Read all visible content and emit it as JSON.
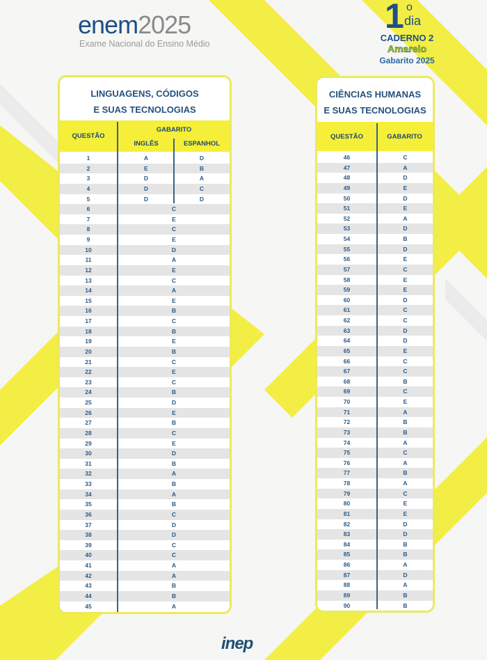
{
  "header": {
    "logo_enem": "enem",
    "logo_year": "2025",
    "logo_subtitle": "Exame Nacional do Ensino Médio",
    "day_number": "1",
    "day_ordinal": "o",
    "day_label": "dia",
    "caderno": "CADERNO 2",
    "cor": "Amarelo",
    "gabarito": "Gabarito 2025"
  },
  "colors": {
    "accent_yellow": "#f5ef3a",
    "text_blue": "#24527e",
    "row_gray": "#e5e5e6"
  },
  "left": {
    "title_line1": "LINGUAGENS, CÓDIGOS",
    "title_line2": "E SUAS TECNOLOGIAS",
    "col_questao": "QUESTÃO",
    "col_gabarito": "GABARITO",
    "col_ingles": "INGLÊS",
    "col_espanhol": "ESPANHOL",
    "rows": [
      {
        "q": "1",
        "ingles": "A",
        "espanhol": "D"
      },
      {
        "q": "2",
        "ingles": "E",
        "espanhol": "B"
      },
      {
        "q": "3",
        "ingles": "D",
        "espanhol": "A"
      },
      {
        "q": "4",
        "ingles": "D",
        "espanhol": "C"
      },
      {
        "q": "5",
        "ingles": "D",
        "espanhol": "D"
      },
      {
        "q": "6",
        "a": "C"
      },
      {
        "q": "7",
        "a": "E"
      },
      {
        "q": "8",
        "a": "C"
      },
      {
        "q": "9",
        "a": "E"
      },
      {
        "q": "10",
        "a": "D"
      },
      {
        "q": "11",
        "a": "A"
      },
      {
        "q": "12",
        "a": "E"
      },
      {
        "q": "13",
        "a": "C"
      },
      {
        "q": "14",
        "a": "A"
      },
      {
        "q": "15",
        "a": "E"
      },
      {
        "q": "16",
        "a": "B"
      },
      {
        "q": "17",
        "a": "C"
      },
      {
        "q": "18",
        "a": "B"
      },
      {
        "q": "19",
        "a": "E"
      },
      {
        "q": "20",
        "a": "B"
      },
      {
        "q": "21",
        "a": "C"
      },
      {
        "q": "22",
        "a": "E"
      },
      {
        "q": "23",
        "a": "C"
      },
      {
        "q": "24",
        "a": "B"
      },
      {
        "q": "25",
        "a": "D"
      },
      {
        "q": "26",
        "a": "E"
      },
      {
        "q": "27",
        "a": "B"
      },
      {
        "q": "28",
        "a": "C"
      },
      {
        "q": "29",
        "a": "E"
      },
      {
        "q": "30",
        "a": "D"
      },
      {
        "q": "31",
        "a": "B"
      },
      {
        "q": "32",
        "a": "A"
      },
      {
        "q": "33",
        "a": "B"
      },
      {
        "q": "34",
        "a": "A"
      },
      {
        "q": "35",
        "a": "B"
      },
      {
        "q": "36",
        "a": "C"
      },
      {
        "q": "37",
        "a": "D"
      },
      {
        "q": "38",
        "a": "D"
      },
      {
        "q": "39",
        "a": "C"
      },
      {
        "q": "40",
        "a": "C"
      },
      {
        "q": "41",
        "a": "A"
      },
      {
        "q": "42",
        "a": "A"
      },
      {
        "q": "43",
        "a": "B"
      },
      {
        "q": "44",
        "a": "B"
      },
      {
        "q": "45",
        "a": "A"
      }
    ]
  },
  "right": {
    "title_line1": "CIÊNCIAS HUMANAS",
    "title_line2": "E SUAS TECNOLOGIAS",
    "col_questao": "QUESTÃO",
    "col_gabarito": "GABARITO",
    "rows": [
      {
        "q": "46",
        "a": "C"
      },
      {
        "q": "47",
        "a": "A"
      },
      {
        "q": "48",
        "a": "D"
      },
      {
        "q": "49",
        "a": "E"
      },
      {
        "q": "50",
        "a": "D"
      },
      {
        "q": "51",
        "a": "E"
      },
      {
        "q": "52",
        "a": "A"
      },
      {
        "q": "53",
        "a": "D"
      },
      {
        "q": "54",
        "a": "B"
      },
      {
        "q": "55",
        "a": "D"
      },
      {
        "q": "56",
        "a": "E"
      },
      {
        "q": "57",
        "a": "C"
      },
      {
        "q": "58",
        "a": "E"
      },
      {
        "q": "59",
        "a": "E"
      },
      {
        "q": "60",
        "a": "D"
      },
      {
        "q": "61",
        "a": "C"
      },
      {
        "q": "62",
        "a": "C"
      },
      {
        "q": "63",
        "a": "D"
      },
      {
        "q": "64",
        "a": "D"
      },
      {
        "q": "65",
        "a": "E"
      },
      {
        "q": "66",
        "a": "C"
      },
      {
        "q": "67",
        "a": "C"
      },
      {
        "q": "68",
        "a": "B"
      },
      {
        "q": "69",
        "a": "C"
      },
      {
        "q": "70",
        "a": "E"
      },
      {
        "q": "71",
        "a": "A"
      },
      {
        "q": "72",
        "a": "B"
      },
      {
        "q": "73",
        "a": "B"
      },
      {
        "q": "74",
        "a": "A"
      },
      {
        "q": "75",
        "a": "C"
      },
      {
        "q": "76",
        "a": "A"
      },
      {
        "q": "77",
        "a": "B"
      },
      {
        "q": "78",
        "a": "A"
      },
      {
        "q": "79",
        "a": "C"
      },
      {
        "q": "80",
        "a": "E"
      },
      {
        "q": "81",
        "a": "E"
      },
      {
        "q": "82",
        "a": "D"
      },
      {
        "q": "83",
        "a": "D"
      },
      {
        "q": "84",
        "a": "B"
      },
      {
        "q": "85",
        "a": "B"
      },
      {
        "q": "86",
        "a": "A"
      },
      {
        "q": "87",
        "a": "D"
      },
      {
        "q": "88",
        "a": "A"
      },
      {
        "q": "89",
        "a": "B"
      },
      {
        "q": "90",
        "a": "B"
      }
    ]
  },
  "footer": {
    "logo": "inep"
  }
}
